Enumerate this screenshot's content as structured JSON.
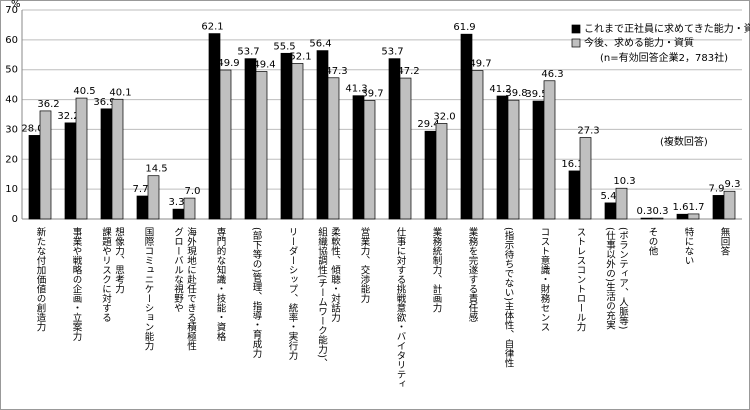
{
  "chart_data": {
    "type": "bar",
    "y_unit": "%",
    "categories": [
      [
        "新たな付加価値の創造力"
      ],
      [
        "事業や戦略の企画・立案力"
      ],
      [
        "課題やリスクに対する",
        "想像力、思考力"
      ],
      [
        "国際コミュニケーション能力"
      ],
      [
        "グローバルな視野や",
        "海外現地に赴任できる積極性"
      ],
      [
        "専門的な知識・技能・資格"
      ],
      [
        "(部下等の)管理、指導・育成力"
      ],
      [
        "リーダーシップ、統率・実行力"
      ],
      [
        "組織協調性(チームワーク能力)、",
        "柔軟性、傾聴・対話力"
      ],
      [
        "営業力、交渉能力"
      ],
      [
        "仕事に対する挑戦意欲・バイタリティ"
      ],
      [
        "業務統制力、計画力"
      ],
      [
        "業務を完遂する責任感"
      ],
      [
        "(指示待ちでない)主体性、自律性"
      ],
      [
        "コスト意識・財務センス"
      ],
      [
        "ストレスコントロール力"
      ],
      [
        "(仕事以外の)生活の充実",
        "(ボランティア、人脈等)"
      ],
      [
        "その他"
      ],
      [
        "特にない"
      ],
      [
        "無回答"
      ]
    ],
    "series": [
      {
        "name": "これまで正社員に求めてきた能力・資質",
        "color": "#000000",
        "values": [
          28,
          32.2,
          36.9,
          7.7,
          3.3,
          62.1,
          53.7,
          55.5,
          56.4,
          41.3,
          53.7,
          29.4,
          61.9,
          41.2,
          39.5,
          16.1,
          5.4,
          0.3,
          1.6,
          7.9
        ],
        "value_labels": [
          "28.0",
          "32.2",
          "36.9",
          "7.7",
          "3.3",
          "62.1",
          "53.7",
          "55.5",
          "56.4",
          "41.3",
          "53.7",
          "29.4",
          "61.9",
          "41.2",
          "39.5",
          "16.1",
          "5.4",
          "0.3",
          "1.6",
          "7.9"
        ]
      },
      {
        "name": "今後、求める能力・資質",
        "color": "#c0c0c0",
        "values": [
          36.2,
          40.5,
          40.1,
          14.5,
          7,
          49.9,
          49.4,
          52.1,
          47.3,
          39.7,
          47.2,
          32,
          49.7,
          39.8,
          46.3,
          27.3,
          10.3,
          0.3,
          1.7,
          9.3
        ],
        "value_labels": [
          "36.2",
          "40.5",
          "40.1",
          "14.5",
          "7.0",
          "49.9",
          "49.4",
          "52.1",
          "47.3",
          "39.7",
          "47.2",
          "32.0",
          "49.7",
          "39.8",
          "46.3",
          "27.3",
          "10.3",
          "0.3",
          "1.7",
          "9.3"
        ]
      }
    ],
    "note": "(n=有効回答企業2，783社)",
    "annotation": "(複数回答)",
    "ylim": [
      0,
      70
    ],
    "yticks": [
      0,
      10,
      20,
      30,
      40,
      50,
      60,
      70
    ],
    "grid": true
  }
}
